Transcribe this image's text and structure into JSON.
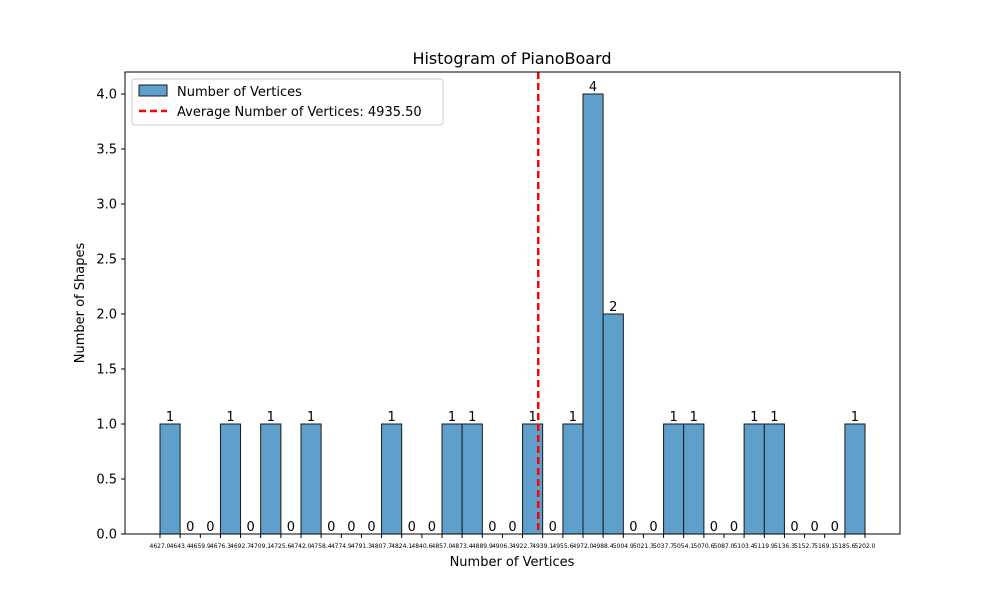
{
  "chart_data": {
    "type": "bar",
    "title": "Histogram of PianoBoard",
    "xlabel": "Number of Vertices",
    "ylabel": "Number of Shapes",
    "ylim": [
      0,
      4.2
    ],
    "yticks": [
      0.0,
      0.5,
      1.0,
      1.5,
      2.0,
      2.5,
      3.0,
      3.5,
      4.0
    ],
    "ytick_labels": [
      "0.0",
      "0.5",
      "1.0",
      "1.5",
      "2.0",
      "2.5",
      "3.0",
      "3.5",
      "4.0"
    ],
    "bin_edges": [
      4627.0,
      4643.4,
      4659.9,
      4676.3,
      4692.7,
      4709.1,
      4725.6,
      4742.0,
      4758.4,
      4774.9,
      4791.3,
      4807.7,
      4824.1,
      4840.6,
      4857.0,
      4873.4,
      4889.9,
      4906.3,
      4922.7,
      4939.1,
      4955.6,
      4972.0,
      4988.4,
      5004.9,
      5021.3,
      5037.7,
      5054.1,
      5070.6,
      5087.0,
      5103.4,
      5119.9,
      5136.3,
      5152.7,
      5169.1,
      5185.6,
      5202.0
    ],
    "xtick_labels": [
      "4627.0",
      "4643.4",
      "4659.9",
      "4676.3",
      "4692.7",
      "4709.1",
      "4725.6",
      "4742.0",
      "4758.4",
      "4774.9",
      "4791.3",
      "4807.7",
      "4824.1",
      "4840.6",
      "4857.0",
      "4873.4",
      "4889.9",
      "4906.3",
      "4922.7",
      "4939.1",
      "4955.6",
      "4972.0",
      "4988.4",
      "5004.9",
      "5021.3",
      "5037.7",
      "5054.1",
      "5070.6",
      "5087.0",
      "5103.4",
      "5119.9",
      "5136.3",
      "5152.7",
      "5169.1",
      "5185.6",
      "5202.0"
    ],
    "counts": [
      1,
      0,
      0,
      1,
      0,
      1,
      0,
      1,
      0,
      0,
      0,
      1,
      0,
      0,
      1,
      1,
      0,
      0,
      1,
      0,
      1,
      4,
      2,
      0,
      0,
      1,
      1,
      0,
      0,
      1,
      1,
      0,
      0,
      0,
      1
    ],
    "count_labels": [
      "1",
      "0",
      "0",
      "1",
      "0",
      "1",
      "0",
      "1",
      "0",
      "0",
      "0",
      "1",
      "0",
      "0",
      "1",
      "1",
      "0",
      "0",
      "1",
      "0",
      "1",
      "4",
      "2",
      "0",
      "0",
      "1",
      "1",
      "0",
      "0",
      "1",
      "1",
      "0",
      "0",
      "0",
      "1"
    ],
    "average_line": {
      "x": 4935.5,
      "color": "#ff0000"
    },
    "bar_color": "#5f9fcb",
    "legend": {
      "placement": "top-left",
      "entries": [
        "Number of Vertices",
        "Average Number of Vertices: 4935.50"
      ]
    },
    "grid": false
  }
}
